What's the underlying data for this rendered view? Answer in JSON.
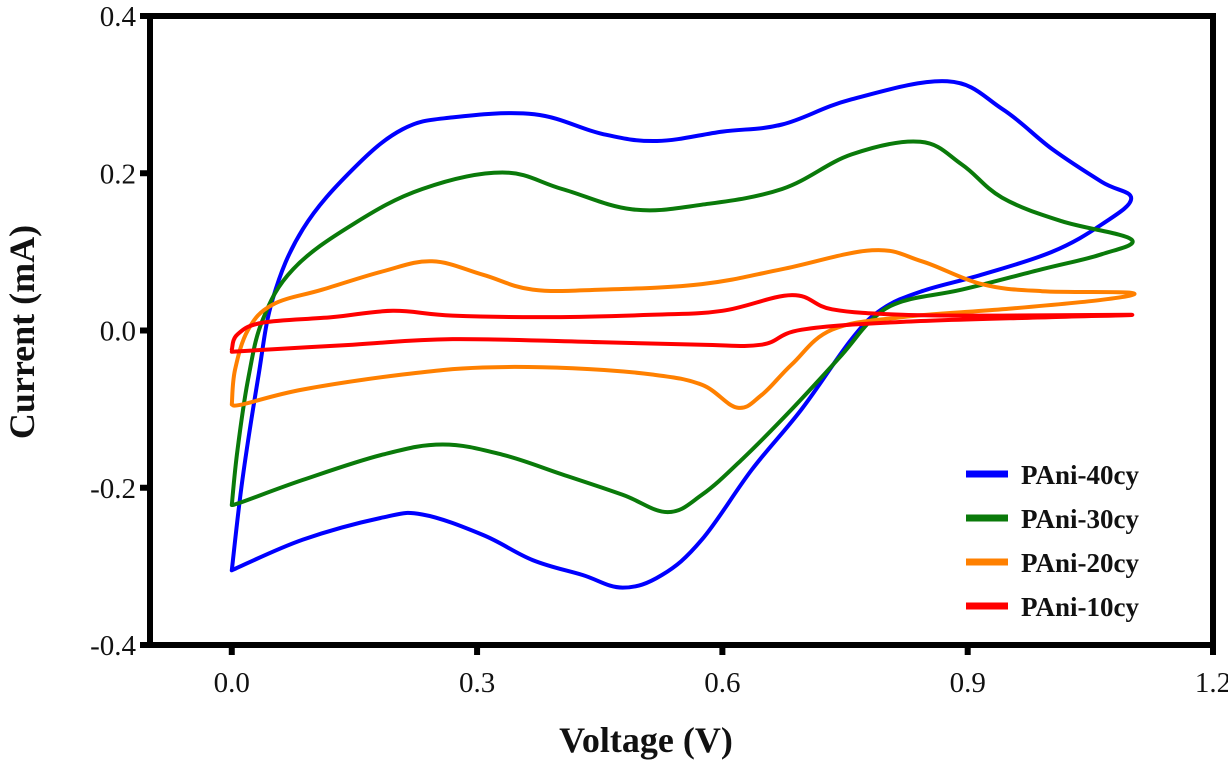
{
  "chart_data": {
    "type": "line",
    "title": "",
    "xlabel": "Voltage (V)",
    "ylabel": "Current (mA)",
    "xlim": [
      -0.1,
      1.2
    ],
    "ylim": [
      -0.4,
      0.4
    ],
    "xticks": [
      0.0,
      0.3,
      0.6,
      0.9,
      1.2
    ],
    "xtick_labels": [
      "0.0",
      "0.3",
      "0.6",
      "0.9",
      "1.2"
    ],
    "yticks": [
      -0.4,
      -0.2,
      0.0,
      0.2,
      0.4
    ],
    "ytick_labels": [
      "-0.4",
      "-0.2",
      "0.0",
      "0.2",
      "0.4"
    ],
    "grid": false,
    "legend_position": "bottom-right",
    "series": [
      {
        "name": "PAni-40cy",
        "color": "#0000ff",
        "points": [
          [
            0.0,
            -0.305
          ],
          [
            0.013,
            -0.19
          ],
          [
            0.032,
            -0.062
          ],
          [
            0.05,
            0.04
          ],
          [
            0.087,
            0.129
          ],
          [
            0.148,
            0.205
          ],
          [
            0.209,
            0.256
          ],
          [
            0.27,
            0.271
          ],
          [
            0.37,
            0.275
          ],
          [
            0.453,
            0.25
          ],
          [
            0.52,
            0.241
          ],
          [
            0.6,
            0.253
          ],
          [
            0.673,
            0.262
          ],
          [
            0.758,
            0.294
          ],
          [
            0.875,
            0.317
          ],
          [
            0.942,
            0.282
          ],
          [
            1.003,
            0.231
          ],
          [
            1.064,
            0.189
          ],
          [
            1.1,
            0.168
          ],
          [
            1.064,
            0.135
          ],
          [
            1.003,
            0.1
          ],
          [
            0.917,
            0.071
          ],
          [
            0.844,
            0.05
          ],
          [
            0.795,
            0.027
          ],
          [
            0.758,
            -0.011
          ],
          [
            0.697,
            -0.1
          ],
          [
            0.636,
            -0.177
          ],
          [
            0.575,
            -0.266
          ],
          [
            0.526,
            -0.311
          ],
          [
            0.478,
            -0.327
          ],
          [
            0.429,
            -0.311
          ],
          [
            0.368,
            -0.292
          ],
          [
            0.307,
            -0.26
          ],
          [
            0.233,
            -0.234
          ],
          [
            0.184,
            -0.238
          ],
          [
            0.087,
            -0.266
          ],
          [
            0.0,
            -0.305
          ]
        ]
      },
      {
        "name": "PAni-30cy",
        "color": "#0a7a0a",
        "points": [
          [
            0.0,
            -0.222
          ],
          [
            0.007,
            -0.152
          ],
          [
            0.02,
            -0.062
          ],
          [
            0.038,
            0.014
          ],
          [
            0.075,
            0.078
          ],
          [
            0.148,
            0.135
          ],
          [
            0.233,
            0.18
          ],
          [
            0.331,
            0.201
          ],
          [
            0.404,
            0.18
          ],
          [
            0.49,
            0.154
          ],
          [
            0.575,
            0.16
          ],
          [
            0.673,
            0.18
          ],
          [
            0.758,
            0.224
          ],
          [
            0.842,
            0.24
          ],
          [
            0.893,
            0.211
          ],
          [
            0.942,
            0.169
          ],
          [
            1.015,
            0.139
          ],
          [
            1.1,
            0.116
          ],
          [
            1.064,
            0.097
          ],
          [
            0.991,
            0.078
          ],
          [
            0.893,
            0.052
          ],
          [
            0.82,
            0.037
          ],
          [
            0.783,
            0.014
          ],
          [
            0.746,
            -0.031
          ],
          [
            0.685,
            -0.1
          ],
          [
            0.624,
            -0.164
          ],
          [
            0.575,
            -0.209
          ],
          [
            0.533,
            -0.231
          ],
          [
            0.478,
            -0.209
          ],
          [
            0.404,
            -0.183
          ],
          [
            0.331,
            -0.158
          ],
          [
            0.258,
            -0.145
          ],
          [
            0.184,
            -0.158
          ],
          [
            0.087,
            -0.19
          ],
          [
            0.013,
            -0.218
          ],
          [
            0.0,
            -0.222
          ]
        ]
      },
      {
        "name": "PAni-20cy",
        "color": "#ff8000",
        "points": [
          [
            0.0,
            -0.094
          ],
          [
            0.004,
            -0.05
          ],
          [
            0.02,
            0.001
          ],
          [
            0.05,
            0.033
          ],
          [
            0.111,
            0.052
          ],
          [
            0.184,
            0.075
          ],
          [
            0.245,
            0.088
          ],
          [
            0.307,
            0.071
          ],
          [
            0.368,
            0.052
          ],
          [
            0.453,
            0.052
          ],
          [
            0.575,
            0.059
          ],
          [
            0.673,
            0.078
          ],
          [
            0.783,
            0.102
          ],
          [
            0.844,
            0.088
          ],
          [
            0.917,
            0.059
          ],
          [
            0.991,
            0.05
          ],
          [
            1.1,
            0.048
          ],
          [
            1.064,
            0.039
          ],
          [
            0.942,
            0.027
          ],
          [
            0.82,
            0.017
          ],
          [
            0.734,
            0.001
          ],
          [
            0.685,
            -0.043
          ],
          [
            0.648,
            -0.082
          ],
          [
            0.618,
            -0.098
          ],
          [
            0.575,
            -0.069
          ],
          [
            0.514,
            -0.056
          ],
          [
            0.417,
            -0.048
          ],
          [
            0.307,
            -0.047
          ],
          [
            0.209,
            -0.056
          ],
          [
            0.087,
            -0.075
          ],
          [
            0.013,
            -0.094
          ],
          [
            0.0,
            -0.094
          ]
        ]
      },
      {
        "name": "PAni-10cy",
        "color": "#ff0000",
        "points": [
          [
            0.0,
            -0.024
          ],
          [
            0.007,
            -0.005
          ],
          [
            0.038,
            0.01
          ],
          [
            0.123,
            0.017
          ],
          [
            0.197,
            0.025
          ],
          [
            0.27,
            0.019
          ],
          [
            0.392,
            0.017
          ],
          [
            0.514,
            0.02
          ],
          [
            0.6,
            0.025
          ],
          [
            0.685,
            0.045
          ],
          [
            0.734,
            0.027
          ],
          [
            0.82,
            0.02
          ],
          [
            0.942,
            0.019
          ],
          [
            1.1,
            0.02
          ],
          [
            1.003,
            0.017
          ],
          [
            0.82,
            0.011
          ],
          [
            0.697,
            0.001
          ],
          [
            0.648,
            -0.018
          ],
          [
            0.575,
            -0.018
          ],
          [
            0.453,
            -0.015
          ],
          [
            0.27,
            -0.011
          ],
          [
            0.148,
            -0.018
          ],
          [
            0.0,
            -0.027
          ]
        ]
      }
    ]
  }
}
